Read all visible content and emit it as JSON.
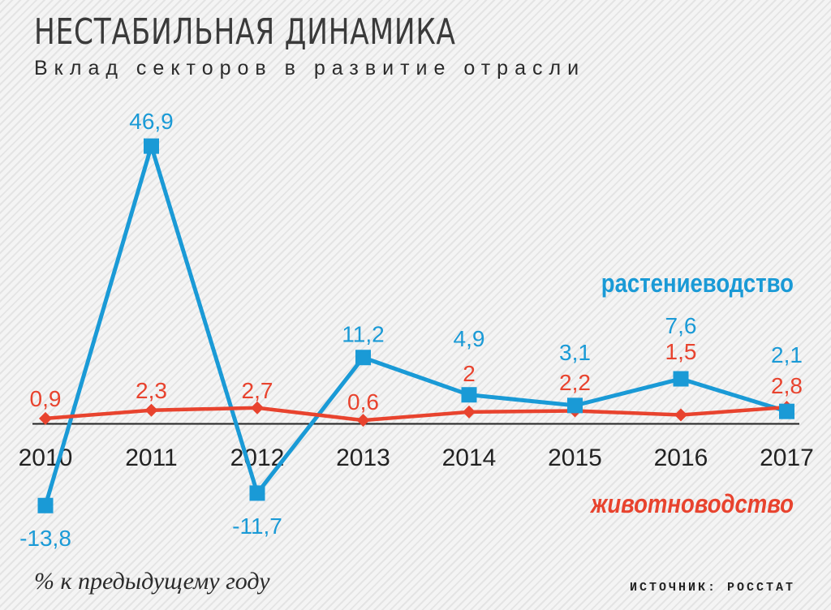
{
  "header": {
    "title": "НЕСТАБИЛЬНАЯ ДИНАМИКА",
    "subtitle": "Вклад секторов в развитие отрасли"
  },
  "footer": {
    "unit_note": "% к предыдущему году",
    "source": "ИСТОЧНИК: РОССТАТ"
  },
  "chart_data": {
    "type": "line",
    "title": "НЕСТАБИЛЬНАЯ ДИНАМИКА",
    "subtitle": "Вклад секторов в развитие отрасли",
    "ylabel": "% к предыдущему году",
    "categories": [
      "2010",
      "2011",
      "2012",
      "2013",
      "2014",
      "2015",
      "2016",
      "2017"
    ],
    "series": [
      {
        "name": "растениеводство",
        "color": "#1a9ad6",
        "marker": "square",
        "values": [
          -13.8,
          46.9,
          -11.7,
          11.2,
          4.9,
          3.1,
          7.6,
          2.1
        ],
        "labels": [
          "-13,8",
          "46,9",
          "-11,7",
          "11,2",
          "4,9",
          "3,1",
          "7,6",
          "2,1"
        ]
      },
      {
        "name": "животноводство",
        "color": "#e8432e",
        "marker": "diamond",
        "values": [
          0.9,
          2.3,
          2.7,
          0.6,
          2,
          2.2,
          1.5,
          2.8
        ],
        "labels": [
          "0,9",
          "2,3",
          "2,7",
          "0,6",
          "2",
          "2,2",
          "1,5",
          "2,8"
        ]
      }
    ],
    "grid": false,
    "legend": "inline-right"
  }
}
